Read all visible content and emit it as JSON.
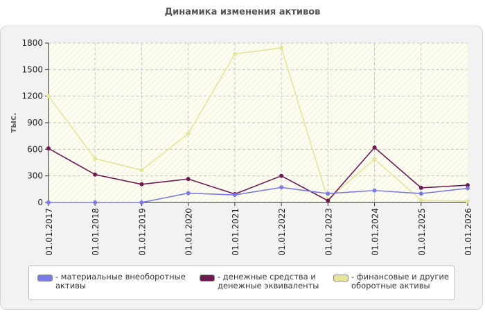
{
  "chart_data": {
    "type": "line",
    "title": "Динамика изменения активов",
    "ylabel": "тыс.",
    "ylim": [
      0,
      1800
    ],
    "yticks": [
      "0",
      "300",
      "600",
      "900",
      "1200",
      "1500",
      "1800"
    ],
    "categories": [
      "01.01.2017",
      "01.01.2018",
      "01.01.2019",
      "01.01.2020",
      "01.01.2021",
      "01.01.2022",
      "01.01.2023",
      "01.01.2024",
      "01.01.2025",
      "01.01.2026"
    ],
    "grid": true,
    "legend_position": "bottom",
    "series": [
      {
        "name": "материальные внеоборотные активы",
        "legend_lines": [
          "- материальные внеоборотные",
          "активы"
        ],
        "color": "#7b7be8",
        "values": [
          0,
          0,
          0,
          105,
          85,
          170,
          100,
          135,
          100,
          160
        ]
      },
      {
        "name": "денежные средства и денежные эквиваленты",
        "legend_lines": [
          "- денежные средства и",
          "денежные эквиваленты"
        ],
        "color": "#6e1a52",
        "values": [
          610,
          315,
          205,
          265,
          95,
          300,
          20,
          620,
          165,
          195
        ]
      },
      {
        "name": "финансовые и другие оборотные активы",
        "legend_lines": [
          "- финансовые и другие",
          "оборотные активы"
        ],
        "color": "#e5e59a",
        "values": [
          1200,
          495,
          365,
          775,
          1675,
          1745,
          30,
          490,
          25,
          15
        ]
      }
    ]
  }
}
